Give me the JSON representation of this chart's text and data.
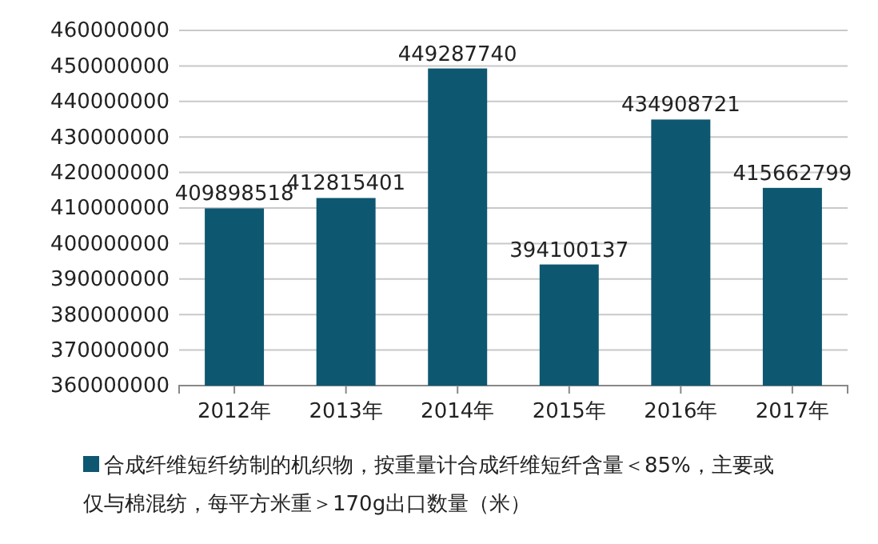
{
  "chart_data": {
    "type": "bar",
    "categories": [
      "2012年",
      "2013年",
      "2014年",
      "2015年",
      "2016年",
      "2017年"
    ],
    "series": [
      {
        "name": "合成纤维短纤纺制的机织物，按重量计合成纤维短纤含量＜85%，主要或仅与棉混纺，每平方米重＞170g出口数量（米）",
        "color": "#0e5770",
        "values": [
          409898518,
          412815401,
          449287740,
          394100137,
          434908721,
          415662799
        ]
      }
    ],
    "ylim": [
      360000000,
      460000000
    ],
    "yticks": [
      360000000,
      370000000,
      380000000,
      390000000,
      400000000,
      410000000,
      420000000,
      430000000,
      440000000,
      450000000,
      460000000
    ],
    "grid": "y",
    "data_labels": true,
    "legend": "bottom"
  }
}
